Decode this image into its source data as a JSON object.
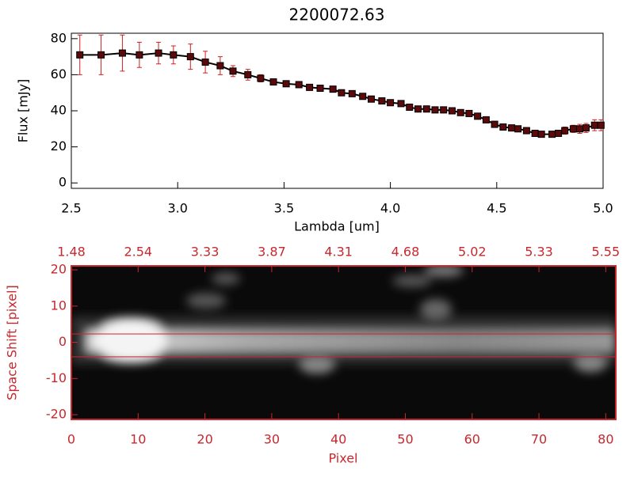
{
  "chart_data": [
    {
      "type": "line",
      "title": "2200072.63",
      "xlabel": "Lambda [um]",
      "ylabel": "Flux [mJy]",
      "xlim": [
        2.5,
        5.0
      ],
      "ylim": [
        -3,
        83
      ],
      "xticks": [
        2.5,
        {
          "value": 3,
          "label": "3.0"
        },
        3.5,
        {
          "value": 4,
          "label": "4.0"
        },
        4.5,
        {
          "value": 5,
          "label": "5.0"
        }
      ],
      "yticks": [
        0,
        20,
        40,
        60,
        80
      ],
      "line_color": "#000000",
      "marker_color": "#5a0a0a",
      "error_color": "#d02020",
      "x": [
        2.54,
        2.64,
        2.74,
        2.82,
        2.91,
        2.98,
        3.06,
        3.13,
        3.2,
        3.26,
        3.33,
        3.39,
        3.45,
        3.51,
        3.57,
        3.62,
        3.67,
        3.73,
        3.77,
        3.82,
        3.87,
        3.91,
        3.96,
        4.0,
        4.05,
        4.09,
        4.13,
        4.17,
        4.21,
        4.25,
        4.29,
        4.33,
        4.37,
        4.41,
        4.45,
        4.49,
        4.53,
        4.57,
        4.6,
        4.64,
        4.68,
        4.71,
        4.76,
        4.79,
        4.82,
        4.86,
        4.89,
        4.92,
        4.96,
        4.99
      ],
      "values": [
        71,
        71,
        72,
        71,
        72,
        71,
        70,
        67,
        65,
        62,
        60,
        58,
        56,
        55,
        54.5,
        53,
        52.5,
        52,
        50,
        49.5,
        48,
        46.5,
        45.5,
        44.5,
        44,
        42,
        41,
        41,
        40.5,
        40.5,
        40,
        39,
        38.5,
        37,
        35,
        32.5,
        31,
        30.5,
        30,
        29,
        27.5,
        27,
        27,
        27.5,
        29,
        30,
        30,
        30.5,
        32,
        32
      ],
      "errors": [
        11,
        11,
        10,
        7,
        6,
        5,
        7,
        6,
        5,
        3,
        3,
        2,
        1.5,
        1,
        1,
        1,
        1,
        1,
        1,
        1,
        1,
        1,
        1,
        1,
        1,
        1,
        1,
        1,
        1,
        1,
        1,
        1,
        1,
        1,
        1,
        1,
        1,
        1,
        1,
        1,
        1,
        1,
        1,
        1.5,
        2,
        2,
        2.5,
        2.5,
        3,
        3
      ]
    },
    {
      "type": "image",
      "xlabel": "Pixel",
      "ylabel": "Space Shift [pixel]",
      "xlim": [
        0,
        81.5
      ],
      "ylim": [
        -21.3,
        21.1
      ],
      "xticks": [
        0,
        10,
        20,
        30,
        40,
        50,
        60,
        70,
        80
      ],
      "x2ticks": [
        {
          "value": 0,
          "label": "1.48"
        },
        {
          "value": 10,
          "label": "2.54"
        },
        {
          "value": 20,
          "label": "3.33"
        },
        {
          "value": 30,
          "label": "3.87"
        },
        {
          "value": 40,
          "label": "4.31"
        },
        {
          "value": 50,
          "label": "4.68"
        },
        {
          "value": 60,
          "label": "5.02"
        },
        {
          "value": 70,
          "label": "5.33"
        },
        {
          "value": 80,
          "label": "5.55"
        }
      ],
      "yticks": [
        -20,
        -10,
        0,
        10,
        20
      ],
      "hlines": [
        2.3,
        -4.0
      ],
      "color": "#c8282d"
    }
  ]
}
